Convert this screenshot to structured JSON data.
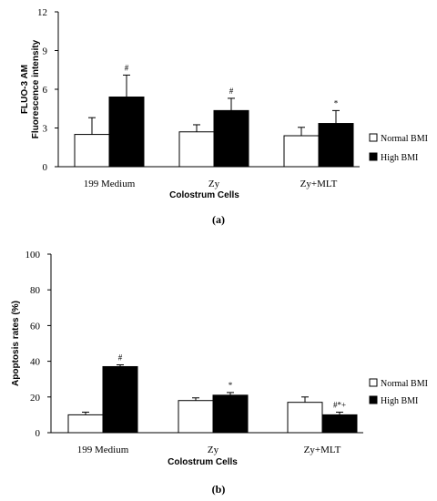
{
  "chart_data": [
    {
      "type": "bar",
      "panel_label": "(a)",
      "xlabel": "Colostrum Cells",
      "ylabel_lines": [
        "FLUO-3 AM",
        "Fluorescence intensity"
      ],
      "ylim": [
        0,
        12
      ],
      "yticks": [
        "0",
        "3",
        "6",
        "9",
        "12"
      ],
      "categories": [
        "199 Medium",
        "Zy",
        "Zy+MLT"
      ],
      "series": [
        {
          "name": "Normal BMI",
          "color": "#ffffff",
          "values": [
            2.5,
            2.7,
            2.4
          ],
          "errors": [
            1.3,
            0.55,
            0.65
          ],
          "annotations": [
            "",
            "",
            ""
          ]
        },
        {
          "name": "High BMI",
          "color": "#000000",
          "values": [
            5.4,
            4.35,
            3.35
          ],
          "errors": [
            1.7,
            0.95,
            1.0
          ],
          "annotations": [
            "#",
            "#",
            "*"
          ]
        }
      ],
      "legend_position": "right",
      "grid": false
    },
    {
      "type": "bar",
      "panel_label": "(b)",
      "xlabel": "Colostrum Cells",
      "ylabel": "Apoptosis rates (%)",
      "ylim": [
        0,
        100
      ],
      "yticks": [
        "0",
        "20",
        "40",
        "60",
        "80",
        "100"
      ],
      "categories": [
        "199 Medium",
        "Zy",
        "Zy+MLT"
      ],
      "series": [
        {
          "name": "Normal BMI",
          "color": "#ffffff",
          "values": [
            10,
            18,
            17
          ],
          "errors": [
            1.5,
            1.5,
            3
          ],
          "annotations": [
            "",
            "",
            ""
          ]
        },
        {
          "name": "High BMI",
          "color": "#000000",
          "values": [
            37,
            21,
            10
          ],
          "errors": [
            1,
            1.5,
            1.5
          ],
          "annotations": [
            "#",
            "*",
            "#*+"
          ]
        }
      ],
      "legend_position": "right",
      "grid": false
    }
  ]
}
